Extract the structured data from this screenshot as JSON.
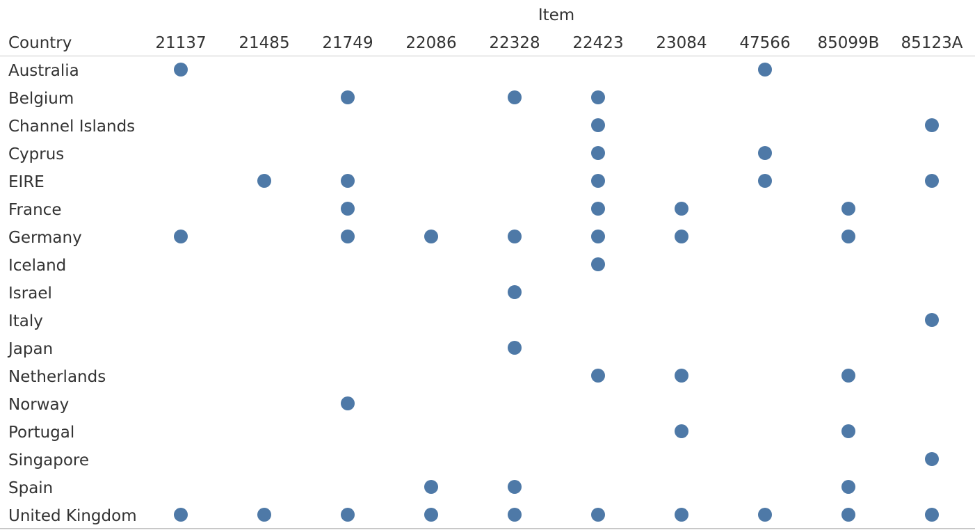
{
  "chart_data": {
    "type": "table",
    "column_header_title": "Item",
    "row_header_title": "Country",
    "columns": [
      "21137",
      "21485",
      "21749",
      "22086",
      "22328",
      "22423",
      "23084",
      "47566",
      "85099B",
      "85123A"
    ],
    "rows": [
      {
        "label": "Australia",
        "items": [
          "21137",
          "47566"
        ]
      },
      {
        "label": "Belgium",
        "items": [
          "21749",
          "22328",
          "22423"
        ]
      },
      {
        "label": "Channel Islands",
        "items": [
          "22423",
          "85123A"
        ]
      },
      {
        "label": "Cyprus",
        "items": [
          "22423",
          "47566"
        ]
      },
      {
        "label": "EIRE",
        "items": [
          "21485",
          "21749",
          "22423",
          "47566",
          "85123A"
        ]
      },
      {
        "label": "France",
        "items": [
          "21749",
          "22423",
          "23084",
          "85099B"
        ]
      },
      {
        "label": "Germany",
        "items": [
          "21137",
          "21749",
          "22086",
          "22328",
          "22423",
          "23084",
          "85099B"
        ]
      },
      {
        "label": "Iceland",
        "items": [
          "22423"
        ]
      },
      {
        "label": "Israel",
        "items": [
          "22328"
        ]
      },
      {
        "label": "Italy",
        "items": [
          "85123A"
        ]
      },
      {
        "label": "Japan",
        "items": [
          "22328"
        ]
      },
      {
        "label": "Netherlands",
        "items": [
          "22423",
          "23084",
          "85099B"
        ]
      },
      {
        "label": "Norway",
        "items": [
          "21749"
        ]
      },
      {
        "label": "Portugal",
        "items": [
          "23084",
          "85099B"
        ]
      },
      {
        "label": "Singapore",
        "items": [
          "85123A"
        ]
      },
      {
        "label": "Spain",
        "items": [
          "22086",
          "22328",
          "85099B"
        ]
      },
      {
        "label": "United Kingdom",
        "items": [
          "21137",
          "21485",
          "21749",
          "22086",
          "22328",
          "22423",
          "23084",
          "47566",
          "85099B",
          "85123A"
        ]
      }
    ],
    "mark_color": "#4e79a7",
    "rule_color": "#c8c8c8"
  }
}
